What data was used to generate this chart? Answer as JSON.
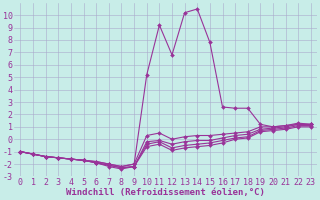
{
  "xlabel": "Windchill (Refroidissement éolien,°C)",
  "background_color": "#c8ede8",
  "grid_color": "#aaaacc",
  "line_color": "#993399",
  "x": [
    0,
    1,
    2,
    3,
    4,
    5,
    6,
    7,
    8,
    9,
    10,
    11,
    12,
    13,
    14,
    15,
    16,
    17,
    18,
    19,
    20,
    21,
    22,
    23
  ],
  "series": [
    [
      -1.0,
      -1.2,
      -1.4,
      -1.5,
      -1.6,
      -1.7,
      -1.8,
      -2.0,
      -2.2,
      -2.0,
      0.3,
      0.5,
      0.0,
      0.2,
      0.3,
      0.3,
      0.4,
      0.5,
      0.6,
      1.0,
      1.0,
      1.1,
      1.2,
      1.2
    ],
    [
      -1.0,
      -1.2,
      -1.4,
      -1.5,
      -1.6,
      -1.7,
      -1.9,
      -2.1,
      -2.3,
      -2.2,
      -0.2,
      -0.1,
      -0.4,
      -0.2,
      -0.1,
      -0.1,
      0.1,
      0.3,
      0.4,
      0.8,
      0.9,
      1.0,
      1.2,
      1.2
    ],
    [
      -1.0,
      -1.2,
      -1.4,
      -1.5,
      -1.6,
      -1.7,
      -1.9,
      -2.1,
      -2.3,
      -2.2,
      -0.4,
      -0.2,
      -0.7,
      -0.5,
      -0.4,
      -0.3,
      -0.1,
      0.1,
      0.2,
      0.7,
      0.8,
      0.9,
      1.1,
      1.1
    ],
    [
      -1.0,
      -1.2,
      -1.4,
      -1.5,
      -1.6,
      -1.7,
      -1.9,
      -2.2,
      -2.4,
      -2.2,
      -0.6,
      -0.4,
      -0.9,
      -0.7,
      -0.6,
      -0.5,
      -0.3,
      0.0,
      0.1,
      0.6,
      0.7,
      0.8,
      1.0,
      1.0
    ],
    [
      -1.0,
      -1.2,
      -1.4,
      -1.5,
      -1.6,
      -1.7,
      -1.8,
      -2.0,
      -2.2,
      -2.0,
      5.2,
      9.2,
      6.8,
      10.2,
      10.5,
      7.8,
      2.6,
      2.5,
      2.5,
      1.2,
      1.0,
      1.1,
      1.3,
      1.2
    ]
  ],
  "ylim": [
    -3,
    11
  ],
  "xlim": [
    -0.5,
    23.5
  ],
  "yticks": [
    -3,
    -2,
    -1,
    0,
    1,
    2,
    3,
    4,
    5,
    6,
    7,
    8,
    9,
    10
  ],
  "xticks": [
    0,
    1,
    2,
    3,
    4,
    5,
    6,
    7,
    8,
    9,
    10,
    11,
    12,
    13,
    14,
    15,
    16,
    17,
    18,
    19,
    20,
    21,
    22,
    23
  ],
  "xlabel_fontsize": 6.5,
  "tick_fontsize": 6,
  "markersize": 2.0,
  "linewidth": 0.8
}
